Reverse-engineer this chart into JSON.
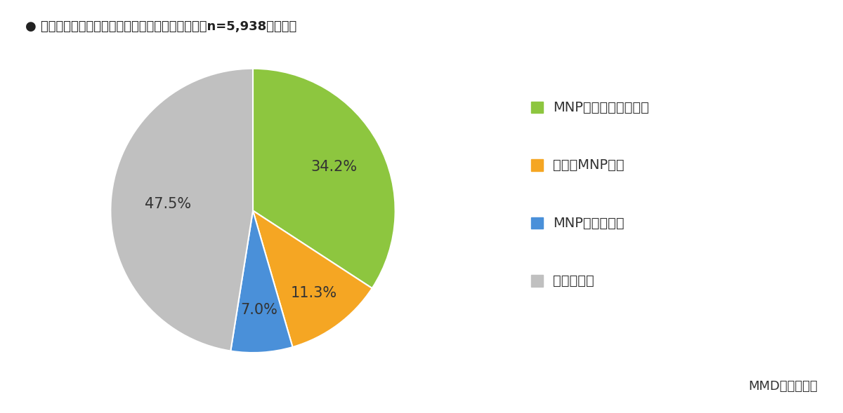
{
  "title": "● 乗り換え検討者の乗り換え時に利用したい方法（n=5,938、単数）",
  "slices": [
    34.2,
    11.3,
    7.0,
    47.5
  ],
  "colors": [
    "#8DC63F",
    "#F5A623",
    "#4A90D9",
    "#C0C0C0"
  ],
  "pct_labels": [
    "34.2%",
    "11.3%",
    "7.0%",
    "47.5%"
  ],
  "legend_labels": [
    "MNPワンストップ方式",
    "従来のMNP方式",
    "MNP以外の方法",
    "分からない"
  ],
  "legend_colors": [
    "#8DC63F",
    "#F5A623",
    "#4A90D9",
    "#C0C0C0"
  ],
  "source_text": "MMD研究所調べ",
  "background_color": "#FFFFFF",
  "title_fontsize": 13,
  "legend_fontsize": 14,
  "pct_fontsize": 15,
  "source_fontsize": 13
}
